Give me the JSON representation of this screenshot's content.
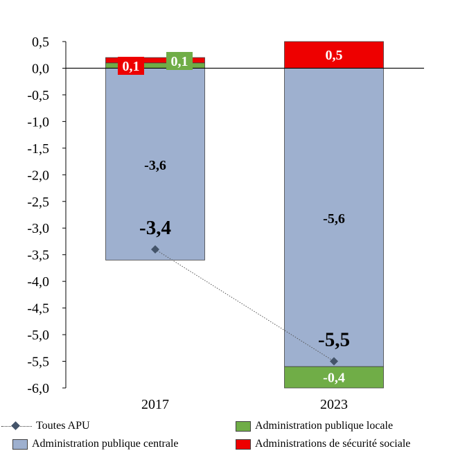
{
  "chart_data": {
    "type": "bar",
    "stacked": true,
    "categories": [
      "2017",
      "2023"
    ],
    "ylim": [
      -6.0,
      0.5
    ],
    "yticks": [
      "0,5",
      "0,0",
      "-0,5",
      "-1,0",
      "-1,5",
      "-2,0",
      "-2,5",
      "-3,0",
      "-3,5",
      "-4,0",
      "-4,5",
      "-5,0",
      "-5,5",
      "-6,0"
    ],
    "ytick_values": [
      0.5,
      0.0,
      -0.5,
      -1.0,
      -1.5,
      -2.0,
      -2.5,
      -3.0,
      -3.5,
      -4.0,
      -4.5,
      -5.0,
      -5.5,
      -6.0
    ],
    "series": [
      {
        "name": "Administration publique centrale",
        "color": "#9eb0cf",
        "values": [
          -3.6,
          -5.6
        ],
        "labels": [
          "-3,6",
          "-5,6"
        ]
      },
      {
        "name": "Administration publique locale",
        "color": "#70ad47",
        "values": [
          0.1,
          -0.4
        ],
        "labels": [
          "0,1",
          "-0,4"
        ]
      },
      {
        "name": "Administrations de sécurité sociale",
        "color": "#ee0000",
        "values": [
          0.1,
          0.5
        ],
        "labels": [
          "0,1",
          "0,5"
        ]
      }
    ],
    "line": {
      "name": "Toutes APU",
      "color": "#44546a",
      "values": [
        -3.4,
        -5.5
      ],
      "labels": [
        "-3,4",
        "-5,5"
      ]
    },
    "legend_position": "bottom"
  },
  "legend": {
    "items": [
      {
        "label": "Toutes APU"
      },
      {
        "label": "Administration publique locale"
      },
      {
        "label": "Administration publique centrale"
      },
      {
        "label": "Administrations de sécurité sociale"
      }
    ]
  }
}
